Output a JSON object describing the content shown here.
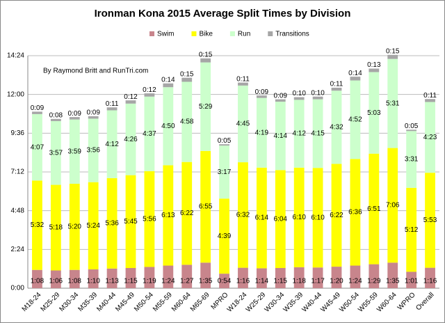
{
  "chart_data": {
    "type": "stacked_bar",
    "title": "Ironman Kona 2015 Average Split Times by Division",
    "annotation": "By Raymond Britt and RunTri.com",
    "categories": [
      "M18-24",
      "M25-29",
      "M30-34",
      "M35-39",
      "M40-44",
      "M45-49",
      "M50-54",
      "M55-59",
      "M60-64",
      "M65-69",
      "MPRO",
      "W18-24",
      "W25-29",
      "W30-34",
      "W35-39",
      "W40-44",
      "W45-49",
      "W50-54",
      "W55-59",
      "W60-64",
      "WPRO",
      "Overall"
    ],
    "series": [
      {
        "name": "Swim",
        "color": "#c8858c",
        "values": [
          68,
          66,
          68,
          70,
          73,
          75,
          79,
          84,
          87,
          95,
          54,
          76,
          74,
          75,
          78,
          77,
          80,
          84,
          89,
          95,
          61,
          76
        ],
        "value_labels": [
          "1:08",
          "1:06",
          "1:08",
          "1:10",
          "1:13",
          "1:15",
          "1:19",
          "1:24",
          "1:27",
          "1:35",
          "0:54",
          "1:16",
          "1:14",
          "1:15",
          "1:18",
          "1:17",
          "1:20",
          "1:24",
          "1:29",
          "1:35",
          "1:01",
          "1:16"
        ]
      },
      {
        "name": "Bike",
        "color": "#ffff00",
        "values": [
          332,
          318,
          320,
          324,
          336,
          345,
          356,
          373,
          382,
          415,
          279,
          392,
          374,
          364,
          370,
          370,
          382,
          396,
          411,
          426,
          312,
          353
        ],
        "value_labels": [
          "5:32",
          "5:18",
          "5:20",
          "5:24",
          "5:36",
          "5:45",
          "5:56",
          "6:13",
          "6:22",
          "6:55",
          "4:39",
          "6:32",
          "6:14",
          "6:04",
          "6:10",
          "6:10",
          "6:22",
          "6:36",
          "6:51",
          "7:06",
          "5:12",
          "5:53"
        ]
      },
      {
        "name": "Run",
        "color": "#ccffcc",
        "values": [
          247,
          237,
          239,
          236,
          252,
          266,
          277,
          290,
          298,
          329,
          197,
          285,
          259,
          254,
          252,
          255,
          272,
          292,
          303,
          331,
          211,
          263
        ],
        "value_labels": [
          "4:07",
          "3:57",
          "3:59",
          "3:56",
          "4:12",
          "4:26",
          "4:37",
          "4:50",
          "4:58",
          "5:29",
          "3:17",
          "4:45",
          "4:19",
          "4:14",
          "4:12",
          "4:15",
          "4:32",
          "4:52",
          "5:03",
          "5:31",
          "3:31",
          "4:23"
        ]
      },
      {
        "name": "Transitions",
        "color": "#a6a6a6",
        "values": [
          9,
          8,
          9,
          9,
          11,
          12,
          12,
          14,
          15,
          15,
          5,
          11,
          9,
          9,
          10,
          10,
          11,
          14,
          13,
          15,
          5,
          11
        ],
        "value_labels": [
          "0:09",
          "0:08",
          "0:09",
          "0:09",
          "0:11",
          "0:12",
          "0:12",
          "0:14",
          "0:15",
          "0:15",
          "0:05",
          "0:11",
          "0:09",
          "0:09",
          "0:10",
          "0:10",
          "0:11",
          "0:14",
          "0:13",
          "0:15",
          "0:05",
          "0:11"
        ]
      }
    ],
    "ylim": [
      0,
      864
    ],
    "yticks": [
      {
        "value": 0,
        "label": "0:00"
      },
      {
        "value": 144,
        "label": "2:24"
      },
      {
        "value": 288,
        "label": "4:48"
      },
      {
        "value": 432,
        "label": "7:12"
      },
      {
        "value": 576,
        "label": "9:36"
      },
      {
        "value": 720,
        "label": "12:00"
      },
      {
        "value": 864,
        "label": "14:24"
      }
    ],
    "grid": true
  }
}
